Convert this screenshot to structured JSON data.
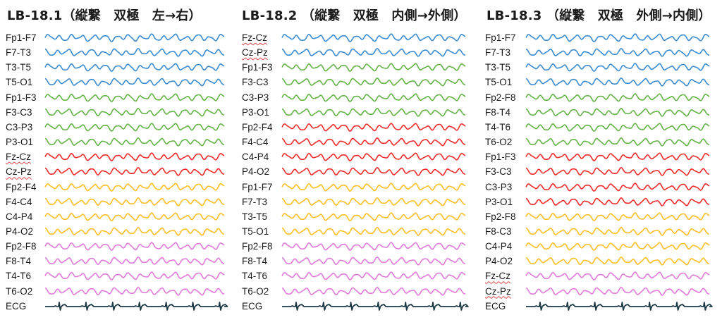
{
  "colors": {
    "blue": "#3a8bd0",
    "green": "#63b346",
    "red": "#ee2a2a",
    "yellow": "#fbbf24",
    "pink": "#e07ad9",
    "ecg": "#1d3a47"
  },
  "panels": [
    {
      "title": "LB-18.1（縦繋　双極　左→右）",
      "rows": [
        {
          "label": "Fp1-F7",
          "color": "blue",
          "pattern": "A"
        },
        {
          "label": "F7-T3",
          "color": "blue",
          "pattern": "B"
        },
        {
          "label": "T3-T5",
          "color": "blue",
          "pattern": "A"
        },
        {
          "label": "T5-O1",
          "color": "blue",
          "pattern": "B"
        },
        {
          "label": "Fp1-F3",
          "color": "green",
          "pattern": "A"
        },
        {
          "label": "F3-C3",
          "color": "green",
          "pattern": "B"
        },
        {
          "label": "C3-P3",
          "color": "green",
          "pattern": "A"
        },
        {
          "label": "P3-O1",
          "color": "green",
          "pattern": "B"
        },
        {
          "label": "Fz-Cz",
          "color": "red",
          "pattern": "A",
          "spell": true
        },
        {
          "label": "Cz-Pz",
          "color": "red",
          "pattern": "B",
          "spell": true
        },
        {
          "label": "Fp2-F4",
          "color": "yellow",
          "pattern": "A"
        },
        {
          "label": "F4-C4",
          "color": "yellow",
          "pattern": "B"
        },
        {
          "label": "C4-P4",
          "color": "yellow",
          "pattern": "A"
        },
        {
          "label": "P4-O2",
          "color": "yellow",
          "pattern": "B"
        },
        {
          "label": "Fp2-F8",
          "color": "pink",
          "pattern": "A"
        },
        {
          "label": "F8-T4",
          "color": "pink",
          "pattern": "B"
        },
        {
          "label": "T4-T6",
          "color": "pink",
          "pattern": "A"
        },
        {
          "label": "T6-O2",
          "color": "pink",
          "pattern": "B"
        },
        {
          "label": "ECG",
          "color": "ecg",
          "pattern": "ECG"
        }
      ]
    },
    {
      "title": "LB-18.2 （縦繋　双極　内側→外側）",
      "rows": [
        {
          "label": "Fz-Cz",
          "color": "blue",
          "pattern": "A",
          "spell": true
        },
        {
          "label": "Cz-Pz",
          "color": "blue",
          "pattern": "B",
          "spell": true
        },
        {
          "label": "Fp1-F3",
          "color": "green",
          "pattern": "A"
        },
        {
          "label": "F3-C3",
          "color": "green",
          "pattern": "B"
        },
        {
          "label": "C3-P3",
          "color": "green",
          "pattern": "A"
        },
        {
          "label": "P3-O1",
          "color": "green",
          "pattern": "B"
        },
        {
          "label": "Fp2-F4",
          "color": "red",
          "pattern": "A"
        },
        {
          "label": "F4-C4",
          "color": "red",
          "pattern": "B"
        },
        {
          "label": "C4-P4",
          "color": "red",
          "pattern": "A"
        },
        {
          "label": "P4-O2",
          "color": "red",
          "pattern": "B"
        },
        {
          "label": "Fp1-F7",
          "color": "yellow",
          "pattern": "A"
        },
        {
          "label": "F7-T3",
          "color": "yellow",
          "pattern": "B"
        },
        {
          "label": "T3-T5",
          "color": "yellow",
          "pattern": "A"
        },
        {
          "label": "T5-O1",
          "color": "yellow",
          "pattern": "B"
        },
        {
          "label": "Fp2-F8",
          "color": "pink",
          "pattern": "A"
        },
        {
          "label": "F8-T4",
          "color": "pink",
          "pattern": "B"
        },
        {
          "label": "T4-T6",
          "color": "pink",
          "pattern": "A"
        },
        {
          "label": "T6-O2",
          "color": "pink",
          "pattern": "B"
        },
        {
          "label": "ECG",
          "color": "ecg",
          "pattern": "ECG"
        }
      ]
    },
    {
      "title": "LB-18.3 （縦繋　双極　外側→内側）",
      "rows": [
        {
          "label": "Fp1-F7",
          "color": "blue",
          "pattern": "A"
        },
        {
          "label": "F7-T3",
          "color": "blue",
          "pattern": "B"
        },
        {
          "label": "T3-T5",
          "color": "blue",
          "pattern": "A"
        },
        {
          "label": "T5-O1",
          "color": "blue",
          "pattern": "B"
        },
        {
          "label": "Fp2-F8",
          "color": "green",
          "pattern": "A"
        },
        {
          "label": "F8-T4",
          "color": "green",
          "pattern": "B"
        },
        {
          "label": "T4-T6",
          "color": "green",
          "pattern": "A"
        },
        {
          "label": "T6-O2",
          "color": "green",
          "pattern": "B"
        },
        {
          "label": "Fp1-F3",
          "color": "red",
          "pattern": "A"
        },
        {
          "label": "F3-C3",
          "color": "red",
          "pattern": "B"
        },
        {
          "label": "C3-P3",
          "color": "red",
          "pattern": "A"
        },
        {
          "label": "P3-O1",
          "color": "red",
          "pattern": "B"
        },
        {
          "label": "Fp2-F8",
          "color": "yellow",
          "pattern": "A"
        },
        {
          "label": "F8-C3",
          "color": "yellow",
          "pattern": "B"
        },
        {
          "label": "C4-P4",
          "color": "yellow",
          "pattern": "A"
        },
        {
          "label": "P4-O2",
          "color": "yellow",
          "pattern": "B"
        },
        {
          "label": "Fz-Cz",
          "color": "pink",
          "pattern": "A",
          "spell": true
        },
        {
          "label": "Cz-Pz",
          "color": "pink",
          "pattern": "B",
          "spell": true
        },
        {
          "label": "ECG",
          "color": "ecg",
          "pattern": "ECG"
        }
      ]
    }
  ]
}
